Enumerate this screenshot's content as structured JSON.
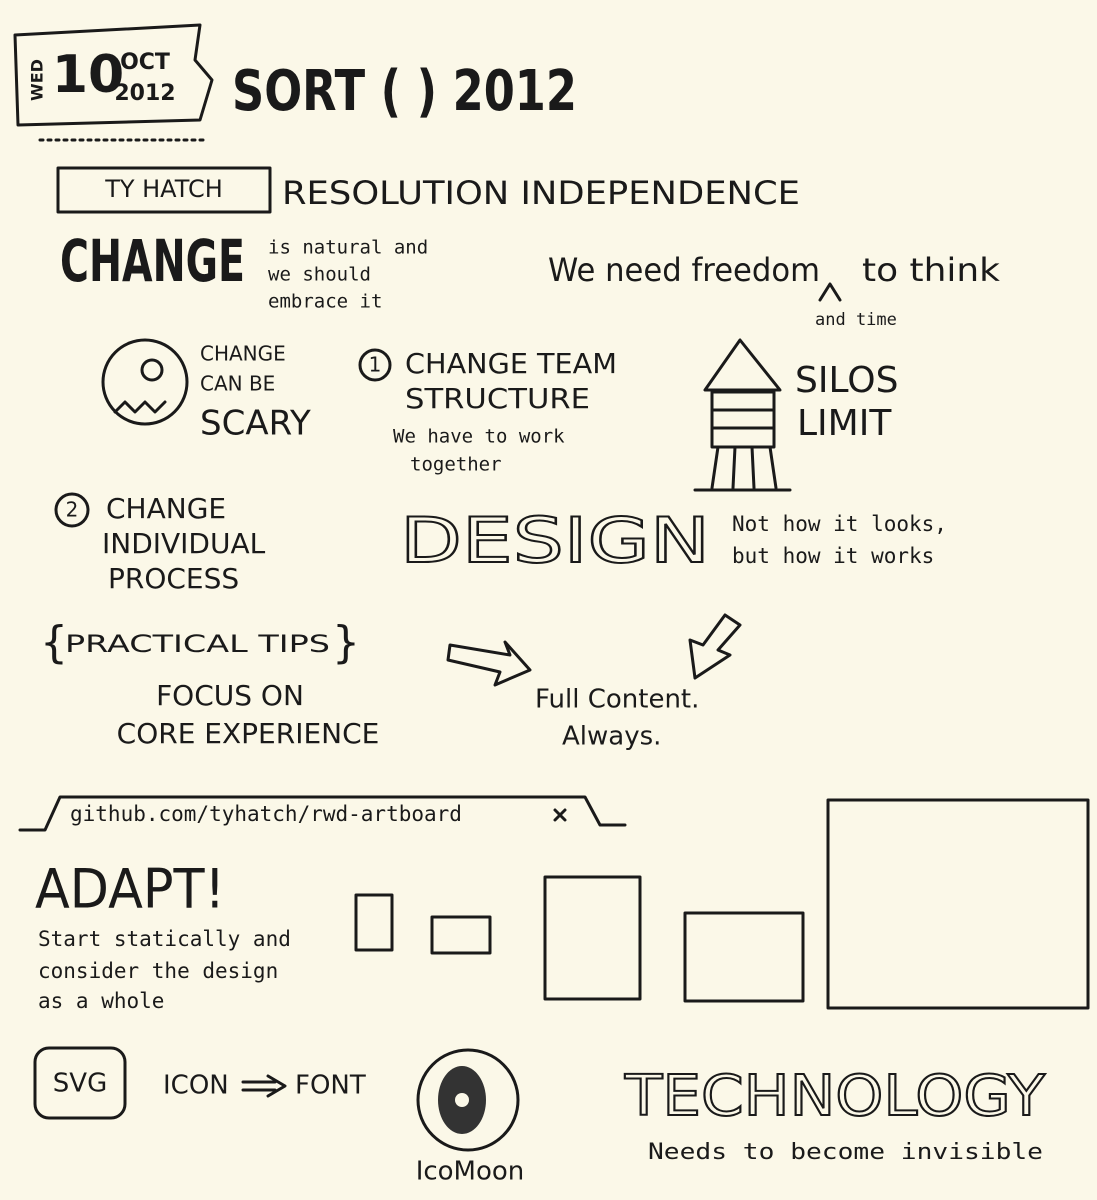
{
  "header": {
    "weekday": "WED",
    "day": "10",
    "month": "OCT",
    "year": "2012",
    "event": "SORT ( ) 2012"
  },
  "talk": {
    "speaker": "TY HATCH",
    "title": "RESOLUTION INDEPENDENCE"
  },
  "change": {
    "word": "CHANGE",
    "note": [
      "is natural and",
      "we should",
      "embrace it"
    ]
  },
  "freedom": {
    "text": "We need freedom",
    "continuation": "to think",
    "insert": "and time"
  },
  "scary": [
    "CHANGE",
    "CAN BE",
    "SCARY"
  ],
  "team": {
    "number": "1",
    "lines": [
      "CHANGE TEAM",
      "STRUCTURE"
    ],
    "note": [
      "We have to work",
      "together"
    ]
  },
  "silos": [
    "SILOS",
    "LIMIT"
  ],
  "individual": {
    "number": "2",
    "lines": [
      "CHANGE",
      "INDIVIDUAL",
      "PROCESS"
    ]
  },
  "design": {
    "word": "DESIGN",
    "note": [
      "Not how it looks,",
      "but how it works"
    ]
  },
  "tips": {
    "heading": "PRACTICAL TIPS",
    "lines": [
      "FOCUS ON",
      "CORE EXPERIENCE"
    ]
  },
  "content": [
    "Full Content.",
    "Always."
  ],
  "link": "github.com/tyhatch/rwd-artboard",
  "adapt": {
    "word": "ADAPT!",
    "note": [
      "Start statically and",
      "consider the design",
      "as a whole"
    ]
  },
  "icons": {
    "svg": "SVG",
    "from": "ICON",
    "to": "FONT",
    "tool": "IcoMoon"
  },
  "technology": {
    "word": "TECHNOLOGY",
    "note": "Needs to become invisible"
  }
}
